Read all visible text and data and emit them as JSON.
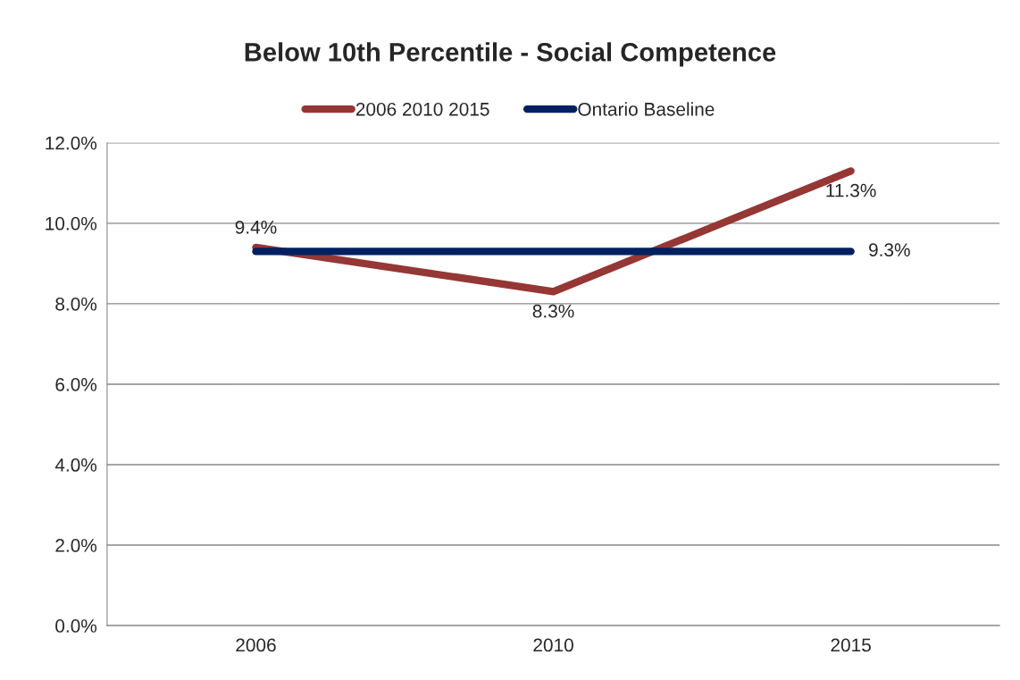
{
  "chart_data": {
    "type": "line",
    "title": "Below 10th Percentile - Social Competence",
    "categories": [
      "2006",
      "2010",
      "2015"
    ],
    "series": [
      {
        "name": "2006 2010 2015",
        "color": "#953735",
        "values": [
          9.4,
          8.3,
          11.3
        ],
        "value_labels": [
          "9.4%",
          "8.3%",
          "11.3%"
        ]
      },
      {
        "name": "Ontario Baseline",
        "color": "#002060",
        "values": [
          9.3,
          9.3,
          9.3
        ],
        "value_labels": [
          null,
          null,
          "9.3%"
        ]
      }
    ],
    "ylim": [
      0,
      12
    ],
    "yticks": [
      {
        "value": 0,
        "label": "0.0%"
      },
      {
        "value": 2,
        "label": "2.0%"
      },
      {
        "value": 4,
        "label": "4.0%"
      },
      {
        "value": 6,
        "label": "6.0%"
      },
      {
        "value": 8,
        "label": "8.0%"
      },
      {
        "value": 10,
        "label": "10.0%"
      },
      {
        "value": 12,
        "label": "12.0%"
      }
    ],
    "grid": "y",
    "legend": "top",
    "marker": "none",
    "line_style": "solid"
  }
}
